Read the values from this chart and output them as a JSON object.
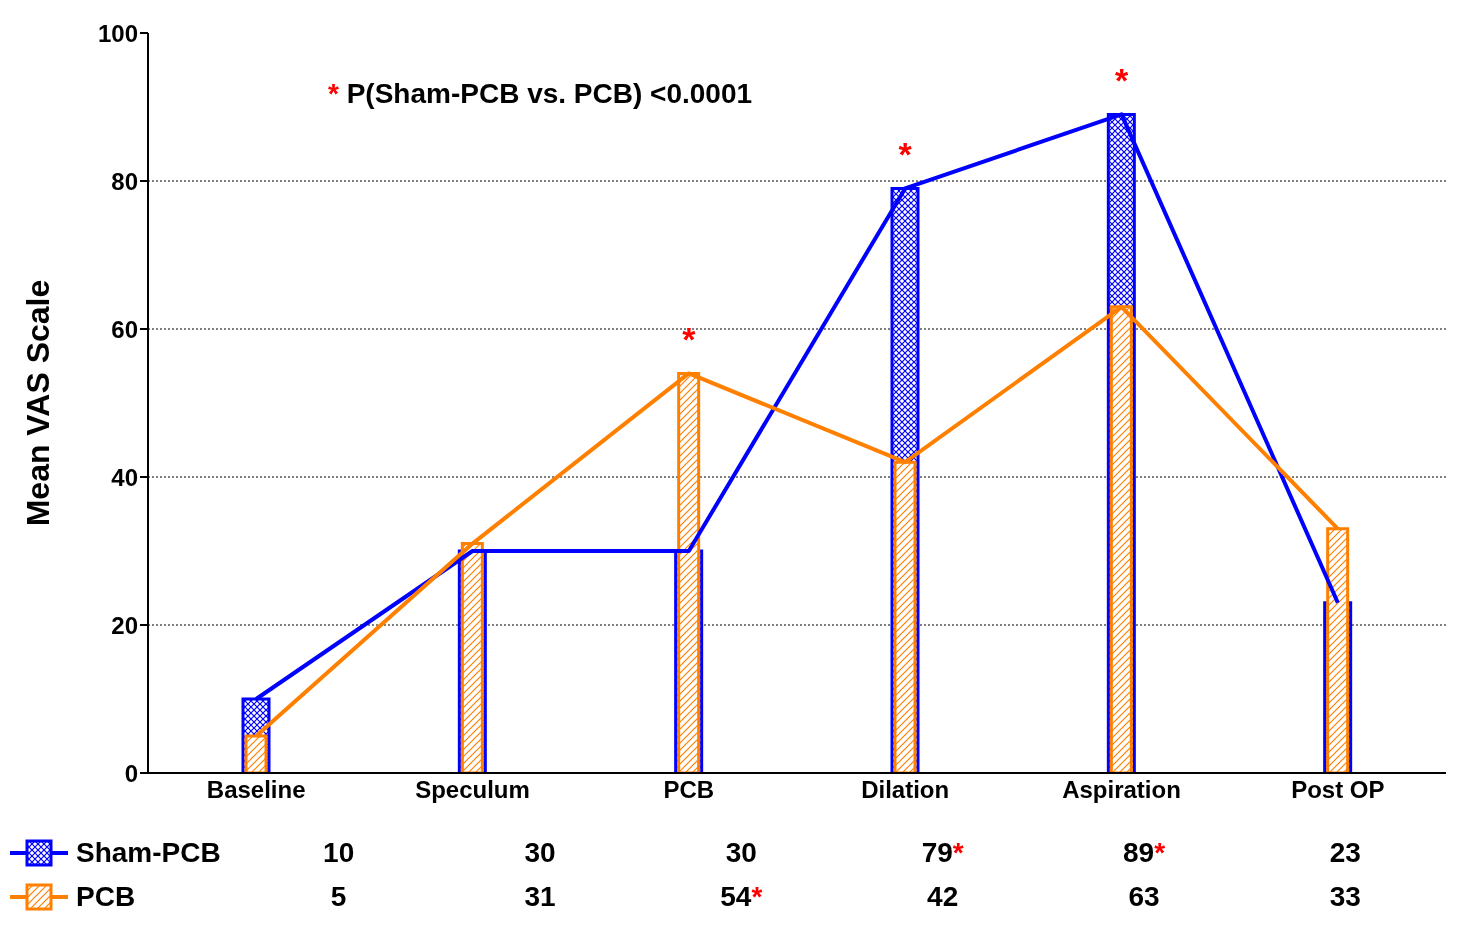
{
  "chart_data": {
    "type": "bar",
    "ylabel": "Mean VAS Scale",
    "categories": [
      "Baseline",
      "Speculum",
      "PCB",
      "Dilation",
      "Aspiration",
      "Post OP"
    ],
    "series": [
      {
        "color": "#0000ff",
        "values": [
          10,
          30,
          30,
          79,
          89,
          23
        ]
      },
      {
        "color": "#ff8000",
        "values": [
          5,
          31,
          54,
          42,
          63,
          33
        ]
      },
      {
        "type": "line",
        "name": "Sham-PCB",
        "color": "#0000ff",
        "values": [
          10,
          30,
          30,
          79,
          89,
          23
        ],
        "value_labels": [
          "10",
          "30",
          "30",
          "79*",
          "89*",
          "23"
        ]
      },
      {
        "type": "line",
        "name": "PCB",
        "color": "#ff8000",
        "values": [
          5,
          31,
          54,
          42,
          63,
          33
        ],
        "value_labels": [
          "5",
          "31",
          "54*",
          "42",
          "63",
          "33"
        ]
      }
    ],
    "ylim": [
      0,
      100
    ],
    "yticks": [
      0,
      20,
      40,
      60,
      80,
      100
    ],
    "grid": "y",
    "marker": "none",
    "line_style": "solid",
    "legend": "bottom left",
    "data_labels": true,
    "annotations": [
      "* P(Sham-PCB vs. PCB) <0.0001",
      {
        "text": "*",
        "x": "PCB",
        "y": 54
      },
      {
        "text": "*",
        "x": "Dilation",
        "y": 79
      },
      {
        "text": "*",
        "x": "Aspiration",
        "y": 89
      }
    ]
  }
}
